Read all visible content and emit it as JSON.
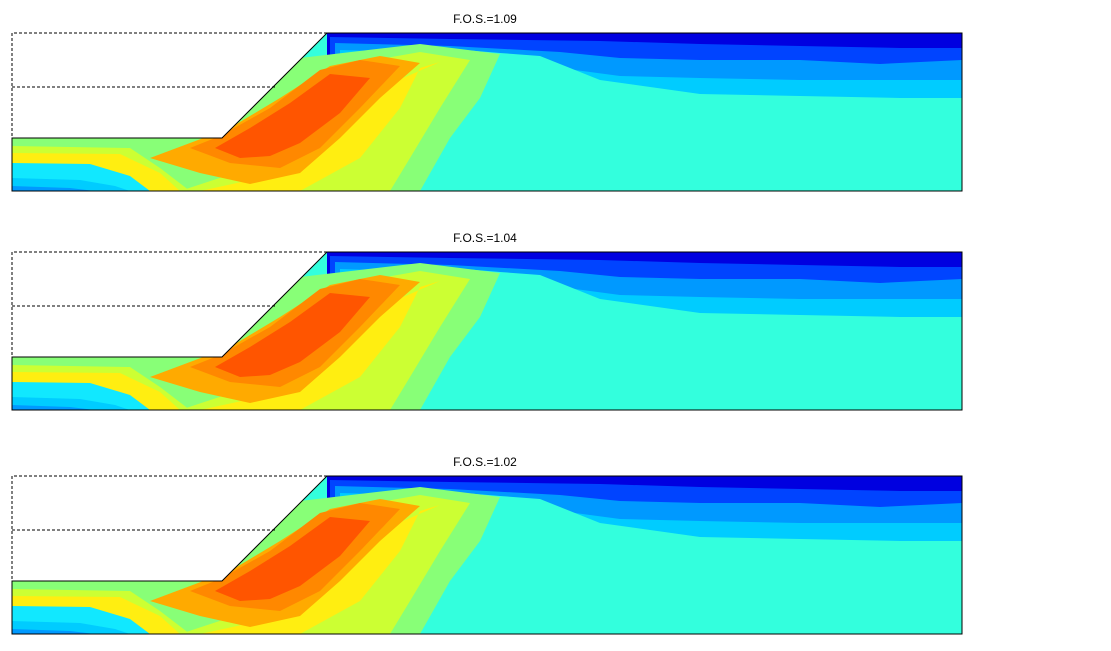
{
  "panels": [
    {
      "title": "F.O.S.=1.09"
    },
    {
      "title": "F.O.S.=1.04"
    },
    {
      "title": "F.O.S.=1.02"
    }
  ],
  "colors": {
    "deep_blue": "#0000e0",
    "blue": "#0044ff",
    "mid_blue": "#0099ff",
    "light_blue": "#00ccff",
    "cyan": "#11e8ff",
    "aqua": "#33ffdd",
    "green": "#88ff77",
    "yellow_green": "#ccff33",
    "yellow": "#ffee11",
    "orange": "#ffaa00",
    "dark_orange": "#ff8800",
    "red_orange": "#ff5500",
    "outline": "#000000"
  }
}
